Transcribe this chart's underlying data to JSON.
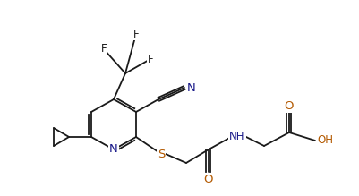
{
  "bg_color": "#ffffff",
  "line_color": "#1a1a1a",
  "atom_colors": {
    "N": "#1a1a8a",
    "O": "#b35900",
    "S": "#b35900",
    "F": "#1a1a1a",
    "H": "#1a1a1a",
    "C": "#1a1a1a"
  },
  "font_size": 8.5,
  "figsize": [
    4.02,
    2.19
  ],
  "dpi": 100
}
